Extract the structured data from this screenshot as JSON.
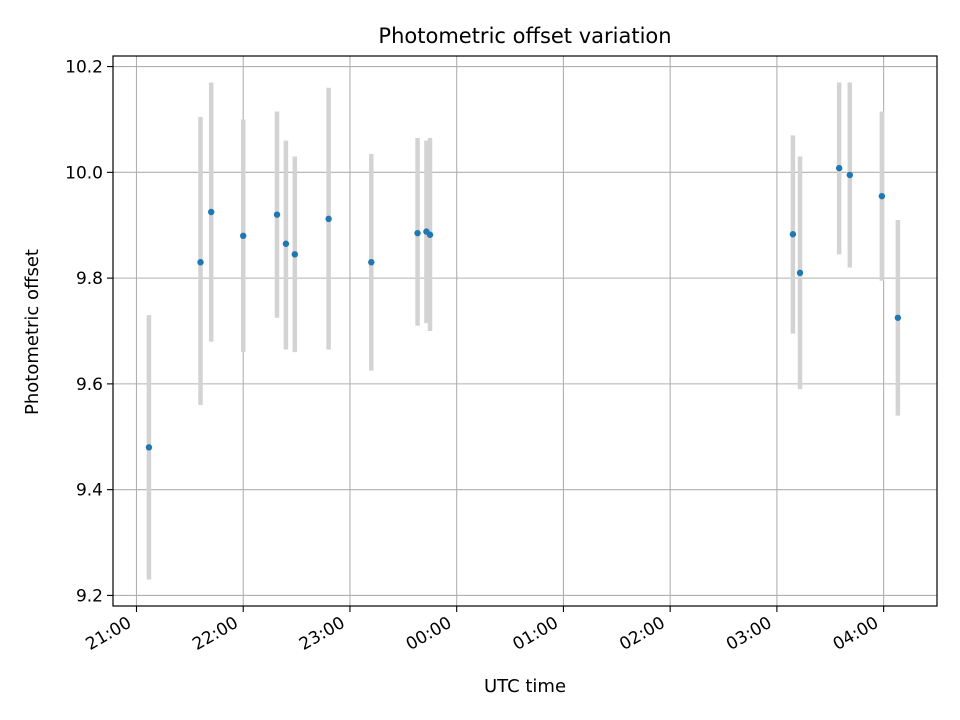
{
  "chart_data": {
    "type": "scatter",
    "title": "Photometric offset variation",
    "xlabel": "UTC time",
    "ylabel": "Photometric offset",
    "grid": true,
    "x_ticks": [
      "21:00",
      "22:00",
      "23:00",
      "00:00",
      "01:00",
      "02:00",
      "03:00",
      "04:00"
    ],
    "x_tick_hours": [
      0,
      1,
      2,
      3,
      4,
      5,
      6,
      7
    ],
    "x_range_hours_after_2100": [
      -0.22,
      7.5
    ],
    "y_ticks": [
      "9.2",
      "9.4",
      "9.6",
      "9.8",
      "10.0",
      "10.2"
    ],
    "y_tick_values": [
      9.2,
      9.4,
      9.6,
      9.8,
      10.0,
      10.2
    ],
    "ylim": [
      9.18,
      10.22
    ],
    "colors": {
      "points": "#1f77b4",
      "errorbars": "#d3d3d3",
      "grid": "#b0b0b0"
    },
    "series": [
      {
        "points": [
          {
            "x": "21:07",
            "y": 9.48,
            "ylow": 9.23,
            "yhigh": 9.73
          },
          {
            "x": "21:36",
            "y": 9.83,
            "ylow": 9.56,
            "yhigh": 10.105
          },
          {
            "x": "21:42",
            "y": 9.925,
            "ylow": 9.68,
            "yhigh": 10.17
          },
          {
            "x": "22:00",
            "y": 9.88,
            "ylow": 9.66,
            "yhigh": 10.1
          },
          {
            "x": "22:19",
            "y": 9.92,
            "ylow": 9.725,
            "yhigh": 10.115
          },
          {
            "x": "22:24",
            "y": 9.865,
            "ylow": 9.665,
            "yhigh": 10.06
          },
          {
            "x": "22:29",
            "y": 9.845,
            "ylow": 9.66,
            "yhigh": 10.03
          },
          {
            "x": "22:48",
            "y": 9.912,
            "ylow": 9.665,
            "yhigh": 10.16
          },
          {
            "x": "23:12",
            "y": 9.83,
            "ylow": 9.625,
            "yhigh": 10.035
          },
          {
            "x": "23:38",
            "y": 9.885,
            "ylow": 9.71,
            "yhigh": 10.065
          },
          {
            "x": "23:43",
            "y": 9.888,
            "ylow": 9.715,
            "yhigh": 10.06
          },
          {
            "x": "23:45",
            "y": 9.882,
            "ylow": 9.7,
            "yhigh": 10.065
          },
          {
            "x": "03:09",
            "y": 9.883,
            "ylow": 9.695,
            "yhigh": 10.07
          },
          {
            "x": "03:13",
            "y": 9.81,
            "ylow": 9.59,
            "yhigh": 10.03
          },
          {
            "x": "03:35",
            "y": 10.008,
            "ylow": 9.845,
            "yhigh": 10.17
          },
          {
            "x": "03:41",
            "y": 9.995,
            "ylow": 9.82,
            "yhigh": 10.17
          },
          {
            "x": "03:59",
            "y": 9.955,
            "ylow": 9.795,
            "yhigh": 10.115
          },
          {
            "x": "04:08",
            "y": 9.725,
            "ylow": 9.54,
            "yhigh": 9.91
          }
        ]
      }
    ]
  }
}
